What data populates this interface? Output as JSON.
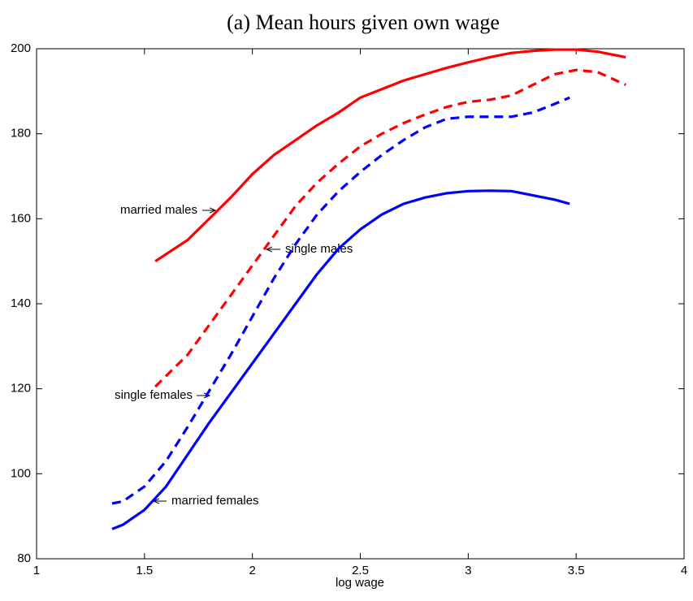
{
  "chart_data": {
    "type": "line",
    "title": "(a) Mean hours given own wage",
    "x_label": "log wage",
    "xlim": [
      1,
      4
    ],
    "xticks": [
      1,
      1.5,
      2,
      2.5,
      3,
      3.5,
      4
    ],
    "ylim": [
      80,
      200
    ],
    "yticks": [
      80,
      100,
      120,
      140,
      160,
      180,
      200
    ],
    "grid": false,
    "series": [
      {
        "name": "married males",
        "color": "#ff0000",
        "style": "solid",
        "x": [
          1.55,
          1.7,
          1.8,
          1.9,
          2.0,
          2.1,
          2.2,
          2.3,
          2.4,
          2.5,
          2.6,
          2.7,
          2.8,
          2.9,
          3.0,
          3.1,
          3.2,
          3.3,
          3.4,
          3.5,
          3.6,
          3.73
        ],
        "values": [
          150,
          155,
          160,
          165,
          170.5,
          175,
          178.5,
          182,
          185,
          188.5,
          190.5,
          192.5,
          194,
          195.5,
          196.8,
          198,
          199,
          199.5,
          199.8,
          199.8,
          199.3,
          198
        ]
      },
      {
        "name": "single males",
        "color": "#ff0000",
        "style": "dashed",
        "x": [
          1.55,
          1.7,
          1.8,
          1.9,
          2.0,
          2.1,
          2.2,
          2.3,
          2.4,
          2.5,
          2.6,
          2.7,
          2.8,
          2.9,
          3.0,
          3.1,
          3.2,
          3.3,
          3.4,
          3.5,
          3.6,
          3.73
        ],
        "values": [
          120.5,
          128,
          135,
          142,
          149,
          156,
          163,
          168.5,
          173,
          177,
          180,
          182.5,
          184.5,
          186.3,
          187.5,
          188,
          189,
          191.5,
          194,
          195,
          194.5,
          191.5
        ]
      },
      {
        "name": "single females",
        "color": "#0000ff",
        "style": "dashed",
        "x": [
          1.35,
          1.4,
          1.5,
          1.6,
          1.7,
          1.8,
          1.9,
          2.0,
          2.1,
          2.2,
          2.3,
          2.4,
          2.5,
          2.6,
          2.7,
          2.8,
          2.9,
          3.0,
          3.1,
          3.2,
          3.3,
          3.4,
          3.47
        ],
        "values": [
          93,
          93.5,
          97,
          103,
          111,
          119.5,
          128,
          137,
          146,
          154,
          161,
          166.5,
          171,
          175,
          178.5,
          181.5,
          183.5,
          184,
          184,
          184,
          185,
          187,
          188.5
        ]
      },
      {
        "name": "married females",
        "color": "#0000ff",
        "style": "solid",
        "x": [
          1.35,
          1.4,
          1.5,
          1.6,
          1.7,
          1.8,
          1.9,
          2.0,
          2.1,
          2.2,
          2.3,
          2.4,
          2.5,
          2.6,
          2.7,
          2.8,
          2.9,
          3.0,
          3.1,
          3.2,
          3.3,
          3.4,
          3.47
        ],
        "values": [
          87,
          88,
          91.5,
          97,
          104.5,
          112,
          119,
          126,
          133,
          140,
          147,
          153,
          157.5,
          161,
          163.5,
          165,
          166,
          166.5,
          166.6,
          166.5,
          165.5,
          164.5,
          163.5
        ]
      }
    ]
  }
}
